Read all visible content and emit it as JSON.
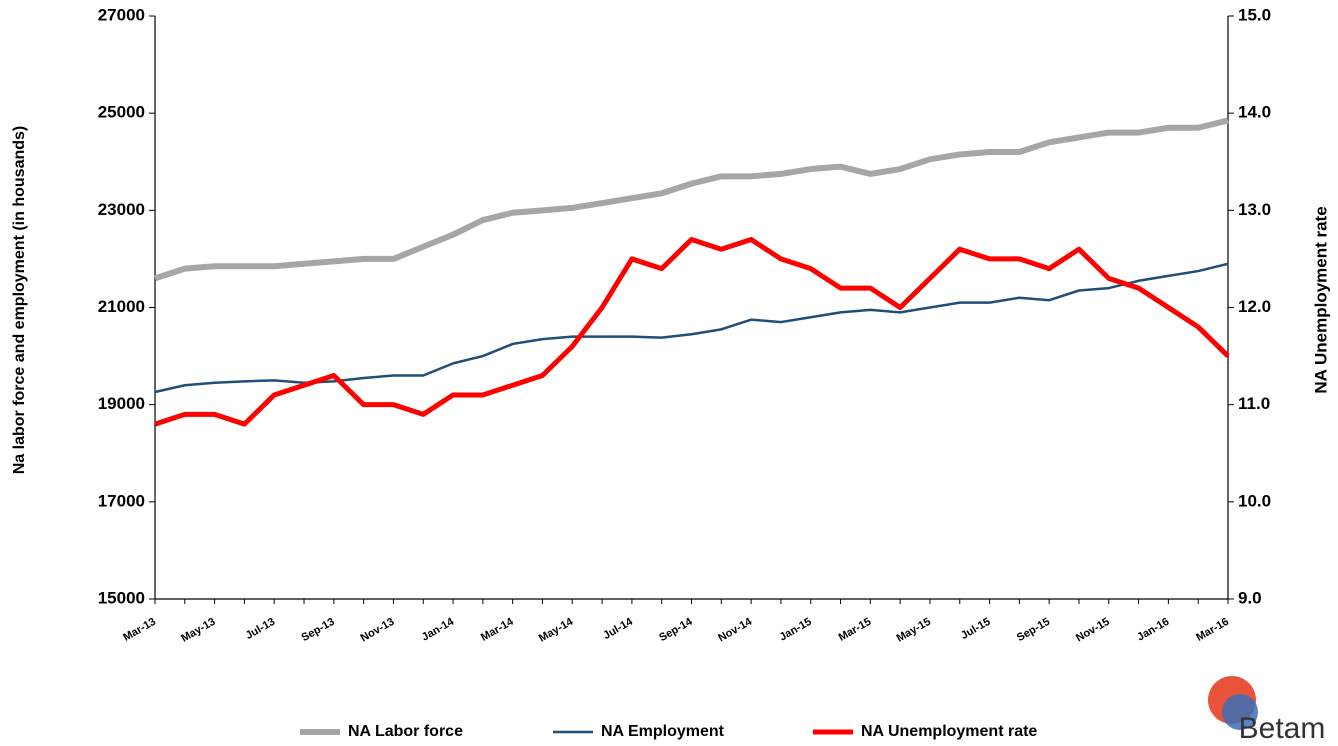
{
  "chart_data": {
    "type": "line",
    "y_label": "Na labor force and employment (in housands)",
    "y2_label": "NA Unemployment  rate",
    "logo": "Betam",
    "categories": [
      "Mar-13",
      null,
      "May-13",
      null,
      "Jul-13",
      null,
      "Sep-13",
      null,
      "Nov-13",
      null,
      "Jan-14",
      null,
      "Mar-14",
      null,
      "May-14",
      null,
      "Jul-14",
      null,
      "Sep-14",
      null,
      "Nov-14",
      null,
      "Jan-15",
      null,
      "Mar-15",
      null,
      "May-15",
      null,
      "Jul-15",
      null,
      "Sep-15",
      null,
      "Nov-15",
      null,
      "Jan-16",
      null,
      "Mar-16"
    ],
    "series": [
      {
        "name": "NA Labor force",
        "color": "#a6a6a6",
        "width": 6,
        "values": [
          21600,
          21800,
          21850,
          21850,
          21850,
          21900,
          21950,
          22000,
          22000,
          22250,
          22500,
          22800,
          22950,
          23000,
          23050,
          23150,
          23250,
          23350,
          23550,
          23700,
          23700,
          23750,
          23850,
          23900,
          23750,
          23850,
          24050,
          24150,
          24200,
          24200,
          24400,
          24500,
          24600,
          24600,
          24700,
          24700,
          24850
        ]
      },
      {
        "name": "NA Employment",
        "color": "#1f4e79",
        "width": 2.5,
        "values": [
          19260,
          19400,
          19450,
          19480,
          19500,
          19450,
          19480,
          19550,
          19600,
          19600,
          19850,
          20000,
          20250,
          20350,
          20400,
          20400,
          20400,
          20380,
          20450,
          20550,
          20750,
          20700,
          20800,
          20900,
          20950,
          20900,
          21000,
          21100,
          21100,
          21200,
          21150,
          21350,
          21400,
          21550,
          21650,
          21750,
          21900
        ]
      },
      {
        "name": "NA Unemployment rate",
        "color": "#ff0000",
        "width": 5,
        "axis": "y2",
        "values": [
          10.8,
          10.9,
          10.9,
          10.8,
          11.1,
          11.2,
          11.3,
          11.0,
          11.0,
          10.9,
          11.1,
          11.1,
          11.2,
          11.3,
          11.6,
          12.0,
          12.5,
          12.4,
          12.7,
          12.6,
          12.7,
          12.5,
          12.4,
          12.2,
          12.2,
          12.0,
          12.3,
          12.6,
          12.5,
          12.5,
          12.4,
          12.6,
          12.3,
          12.2,
          12.0,
          11.8,
          11.5
        ]
      }
    ],
    "ylim": [
      15000,
      27000
    ],
    "yticks": [
      15000,
      17000,
      19000,
      21000,
      23000,
      25000,
      27000
    ],
    "y2lim": [
      9.0,
      15.0
    ],
    "y2ticks": [
      {
        "value": 9,
        "label": "9.0"
      },
      {
        "value": 10,
        "label": "10.0"
      },
      {
        "value": 11,
        "label": "11.0"
      },
      {
        "value": 12,
        "label": "12.0"
      },
      {
        "value": 13,
        "label": "13.0"
      },
      {
        "value": 14,
        "label": "14.0"
      },
      {
        "value": 15,
        "label": "15.0"
      }
    ],
    "grid": false,
    "legend": "bottom"
  }
}
